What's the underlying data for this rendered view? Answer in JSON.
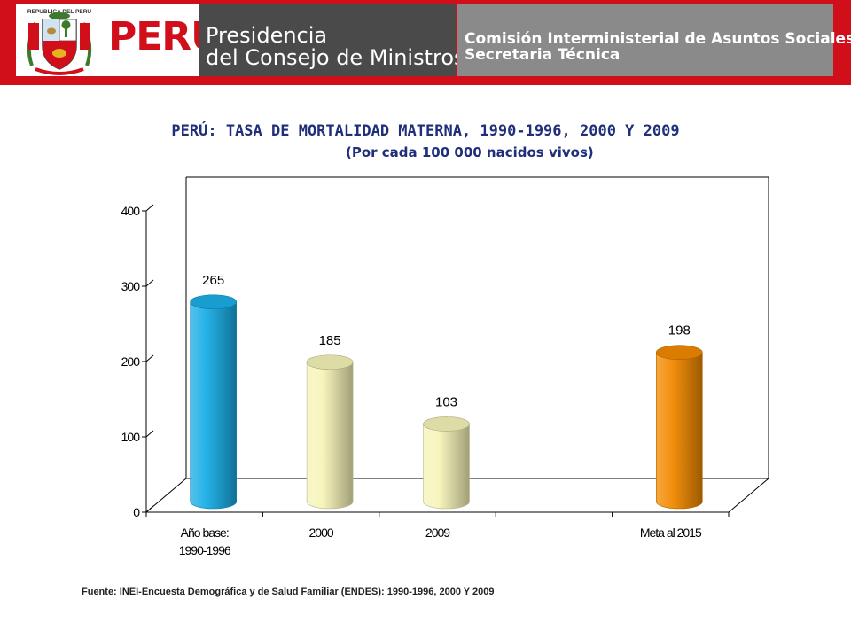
{
  "header": {
    "seal_text": "REPUBLICA DEL PERU",
    "country": "PERÚ",
    "org_line1": "Presidencia",
    "org_line2": "del Consejo de Ministros",
    "unit_line1": "Comisión Interministerial de Asuntos Sociales",
    "unit_line2": "Secretaria Técnica",
    "colors": {
      "brand_red": "#d10f1a",
      "dark_gray": "#4a4a4a",
      "mid_gray": "#8a8a8a"
    }
  },
  "chart_data": {
    "type": "bar",
    "title": "PERÚ: TASA DE MORTALIDAD MATERNA, 1990-1996, 2000 Y 2009",
    "subtitle": "(Por cada 100 000 nacidos vivos)",
    "categories": [
      "Año base: 1990-1996",
      "2000",
      "2009",
      "",
      "Meta al 2015"
    ],
    "category_lines": [
      [
        "Año base:",
        "1990-1996"
      ],
      [
        "2000"
      ],
      [
        "2009"
      ],
      [
        ""
      ],
      [
        "Meta al 2015"
      ]
    ],
    "values": [
      265,
      185,
      103,
      null,
      198
    ],
    "data_labels": [
      "265",
      "185",
      "103",
      "",
      "198"
    ],
    "bar_colors": [
      "#1aaee6",
      "#f7f4b8",
      "#f7f4b8",
      null,
      "#f28a00"
    ],
    "yticks": [
      "0",
      "100",
      "200",
      "300",
      "400"
    ],
    "ylim": [
      0,
      400
    ],
    "grid": false,
    "style": "3d-cylinder"
  },
  "source": "Fuente: INEI-Encuesta Demográfica y de Salud Familiar (ENDES): 1990-1996, 2000 Y 2009"
}
